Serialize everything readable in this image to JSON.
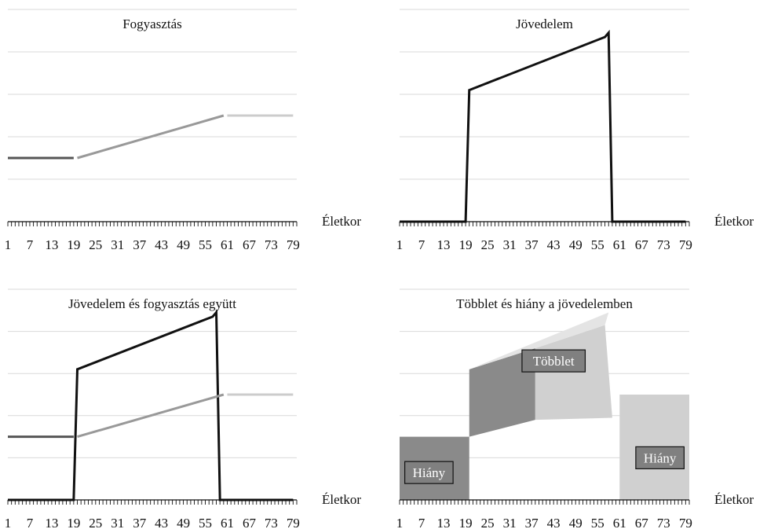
{
  "chart_data": [
    {
      "type": "line",
      "title": "Fogyasztás",
      "xlabel": "Életkor",
      "xlim": [
        1,
        80
      ],
      "ylim": [
        0,
        5
      ],
      "grid": true,
      "x_ticks": [
        1,
        7,
        13,
        19,
        25,
        31,
        37,
        43,
        49,
        55,
        61,
        67,
        73,
        79
      ],
      "series": [
        {
          "color": "#555555",
          "points": [
            [
              1,
              1.5
            ],
            [
              19,
              1.5
            ]
          ]
        },
        {
          "color": "#999999",
          "points": [
            [
              20,
              1.5
            ],
            [
              60,
              2.5
            ]
          ]
        },
        {
          "color": "#cccccc",
          "points": [
            [
              61,
              2.5
            ],
            [
              79,
              2.5
            ]
          ]
        }
      ]
    },
    {
      "type": "line",
      "title": "Jövedelem",
      "xlabel": "Életkor",
      "xlim": [
        1,
        80
      ],
      "ylim": [
        0,
        5
      ],
      "grid": true,
      "x_ticks": [
        1,
        7,
        13,
        19,
        25,
        31,
        37,
        43,
        49,
        55,
        61,
        67,
        73,
        79
      ],
      "series": [
        {
          "color": "#111111",
          "points": [
            [
              1,
              0
            ],
            [
              19,
              0
            ],
            [
              20,
              3.1
            ],
            [
              57,
              4.35
            ],
            [
              58,
              4.45
            ],
            [
              59,
              0
            ],
            [
              79,
              0
            ]
          ]
        }
      ]
    },
    {
      "type": "line",
      "title": "Jövedelem és fogyasztás együtt",
      "xlabel": "Életkor",
      "xlim": [
        1,
        80
      ],
      "ylim": [
        0,
        5
      ],
      "grid": true,
      "x_ticks": [
        1,
        7,
        13,
        19,
        25,
        31,
        37,
        43,
        49,
        55,
        61,
        67,
        73,
        79
      ],
      "series": [
        {
          "color": "#111111",
          "points": [
            [
              1,
              0
            ],
            [
              19,
              0
            ],
            [
              20,
              3.1
            ],
            [
              57,
              4.35
            ],
            [
              58,
              4.45
            ],
            [
              59,
              0
            ],
            [
              79,
              0
            ]
          ]
        },
        {
          "color": "#555555",
          "points": [
            [
              1,
              1.5
            ],
            [
              19,
              1.5
            ]
          ]
        },
        {
          "color": "#999999",
          "points": [
            [
              20,
              1.5
            ],
            [
              60,
              2.5
            ]
          ]
        },
        {
          "color": "#cccccc",
          "points": [
            [
              61,
              2.5
            ],
            [
              79,
              2.5
            ]
          ]
        }
      ]
    },
    {
      "type": "area",
      "title": "Többlet és hiány a jövedelemben",
      "xlabel": "Életkor",
      "xlim": [
        1,
        80
      ],
      "ylim": [
        0,
        5
      ],
      "grid": true,
      "x_ticks": [
        1,
        7,
        13,
        19,
        25,
        31,
        37,
        43,
        49,
        55,
        61,
        67,
        73,
        79
      ],
      "regions": [
        {
          "color": "#8a8a8a",
          "points": [
            [
              1,
              0
            ],
            [
              20,
              0
            ],
            [
              20,
              1.5
            ],
            [
              1,
              1.5
            ]
          ]
        },
        {
          "color": "#8a8a8a",
          "points": [
            [
              20,
              3.1
            ],
            [
              38,
              3.6
            ],
            [
              38,
              1.9
            ],
            [
              20,
              1.5
            ]
          ]
        },
        {
          "color": "#d0d0d0",
          "points": [
            [
              38,
              3.6
            ],
            [
              57,
              4.15
            ],
            [
              59,
              1.95
            ],
            [
              38,
              1.9
            ]
          ]
        },
        {
          "color": "#e4e4e4",
          "points": [
            [
              20,
              3.1
            ],
            [
              58,
              4.45
            ],
            [
              57,
              4.15
            ],
            [
              38,
              3.6
            ]
          ]
        },
        {
          "color": "#d0d0d0",
          "points": [
            [
              61,
              0
            ],
            [
              80,
              0
            ],
            [
              80,
              2.5
            ],
            [
              61,
              2.5
            ]
          ]
        }
      ],
      "annotations": [
        {
          "text": "Hiány",
          "x": 9,
          "y": 0.65,
          "fill": "#808080"
        },
        {
          "text": "Többlet",
          "x": 43,
          "y": 3.3,
          "fill": "#808080"
        },
        {
          "text": "Hiány",
          "x": 72,
          "y": 1.0,
          "fill": "#808080"
        }
      ]
    }
  ]
}
